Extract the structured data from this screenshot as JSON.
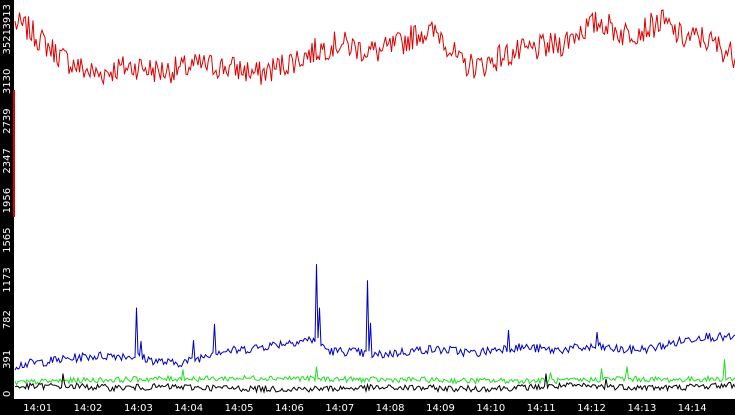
{
  "chart_data": {
    "type": "line",
    "title": "",
    "xlabel": "",
    "ylabel": "",
    "ylim": [
      0,
      3913
    ],
    "xlim_minutes": [
      0.55,
      14.85
    ],
    "y_ticks": [
      {
        "value": 0,
        "label": "0"
      },
      {
        "value": 391,
        "label": "391"
      },
      {
        "value": 782,
        "label": "782"
      },
      {
        "value": 1173,
        "label": "1173"
      },
      {
        "value": 1565,
        "label": "1565"
      },
      {
        "value": 1956,
        "label": "1956"
      },
      {
        "value": 2347,
        "label": "2347"
      },
      {
        "value": 2739,
        "label": "2739"
      },
      {
        "value": 3130,
        "label": "3130"
      },
      {
        "value": 3521,
        "label": "3521"
      },
      {
        "value": 3913,
        "label": "3913"
      }
    ],
    "x_ticks": [
      {
        "minute": 1,
        "label": "14:01"
      },
      {
        "minute": 2,
        "label": "14:02"
      },
      {
        "minute": 3,
        "label": "14:03"
      },
      {
        "minute": 4,
        "label": "14:04"
      },
      {
        "minute": 5,
        "label": "14:05"
      },
      {
        "minute": 6,
        "label": "14:06"
      },
      {
        "minute": 7,
        "label": "14:07"
      },
      {
        "minute": 8,
        "label": "14:08"
      },
      {
        "minute": 9,
        "label": "14:09"
      },
      {
        "minute": 10,
        "label": "14:10"
      },
      {
        "minute": 11,
        "label": "14:11"
      },
      {
        "minute": 12,
        "label": "14:12"
      },
      {
        "minute": 13,
        "label": "14:13"
      },
      {
        "minute": 14,
        "label": "14:14"
      }
    ],
    "grid": false,
    "legend": "none",
    "background_color": "#ffffff",
    "axis_bar_color": "#000000",
    "series": [
      {
        "color": "#dd0000",
        "noise": 130,
        "x": [
          0.55,
          0.8,
          1.1,
          1.5,
          1.9,
          2.2,
          2.6,
          3.0,
          3.4,
          3.8,
          4.2,
          4.6,
          5.0,
          5.4,
          5.8,
          6.2,
          6.6,
          7.0,
          7.4,
          7.8,
          8.2,
          8.6,
          9.0,
          9.4,
          9.8,
          10.2,
          10.6,
          11.0,
          11.4,
          11.8,
          12.2,
          12.6,
          13.0,
          13.4,
          13.8,
          14.2,
          14.5,
          14.85
        ],
        "y": [
          3700,
          3650,
          3520,
          3360,
          3250,
          3200,
          3260,
          3280,
          3230,
          3250,
          3290,
          3280,
          3250,
          3200,
          3280,
          3360,
          3450,
          3510,
          3450,
          3420,
          3500,
          3620,
          3600,
          3300,
          3280,
          3380,
          3420,
          3460,
          3500,
          3640,
          3720,
          3600,
          3640,
          3720,
          3560,
          3560,
          3480,
          3380
        ]
      },
      {
        "color": "#0000c0",
        "noise": 45,
        "x": [
          0.55,
          1.0,
          1.5,
          2.0,
          2.5,
          2.95,
          3.3,
          3.7,
          4.1,
          4.5,
          5.0,
          5.5,
          6.0,
          6.5,
          6.8,
          7.2,
          7.7,
          8.2,
          8.7,
          9.2,
          9.7,
          10.2,
          10.7,
          11.2,
          11.7,
          12.2,
          12.7,
          13.2,
          13.7,
          14.2,
          14.85
        ],
        "y": [
          330,
          360,
          390,
          420,
          430,
          420,
          380,
          350,
          380,
          470,
          480,
          520,
          560,
          590,
          470,
          470,
          430,
          460,
          490,
          480,
          450,
          500,
          510,
          480,
          500,
          510,
          480,
          500,
          560,
          620,
          600
        ],
        "spikes": [
          {
            "x": 2.95,
            "y": 900
          },
          {
            "x": 3.05,
            "y": 570
          },
          {
            "x": 4.1,
            "y": 580
          },
          {
            "x": 4.5,
            "y": 740
          },
          {
            "x": 6.55,
            "y": 1330
          },
          {
            "x": 6.6,
            "y": 900
          },
          {
            "x": 7.55,
            "y": 1170
          },
          {
            "x": 7.6,
            "y": 750
          },
          {
            "x": 10.35,
            "y": 680
          },
          {
            "x": 12.1,
            "y": 660
          }
        ]
      },
      {
        "color": "#22dd22",
        "noise": 28,
        "x": [
          0.55,
          1.5,
          2.5,
          3.5,
          4.5,
          5.5,
          6.5,
          7.5,
          8.5,
          9.5,
          10.5,
          11.5,
          12.5,
          13.5,
          14.85
        ],
        "y": [
          160,
          180,
          190,
          200,
          200,
          210,
          200,
          190,
          190,
          180,
          180,
          180,
          200,
          190,
          200
        ],
        "spikes": [
          {
            "x": 3.9,
            "y": 290
          },
          {
            "x": 6.55,
            "y": 320
          },
          {
            "x": 11.2,
            "y": 260
          },
          {
            "x": 12.2,
            "y": 300
          },
          {
            "x": 12.7,
            "y": 320
          },
          {
            "x": 14.65,
            "y": 390
          }
        ]
      },
      {
        "color": "#000000",
        "noise": 32,
        "x": [
          0.55,
          1.5,
          2.5,
          3.5,
          4.5,
          5.5,
          6.5,
          7.5,
          8.5,
          9.5,
          10.5,
          11.5,
          12.5,
          13.5,
          14.85
        ],
        "y": [
          120,
          130,
          110,
          120,
          110,
          100,
          100,
          110,
          110,
          100,
          110,
          130,
          120,
          110,
          140
        ],
        "spikes": [
          {
            "x": 1.5,
            "y": 250
          },
          {
            "x": 11.1,
            "y": 250
          },
          {
            "x": 12.3,
            "y": 200
          }
        ]
      }
    ]
  }
}
